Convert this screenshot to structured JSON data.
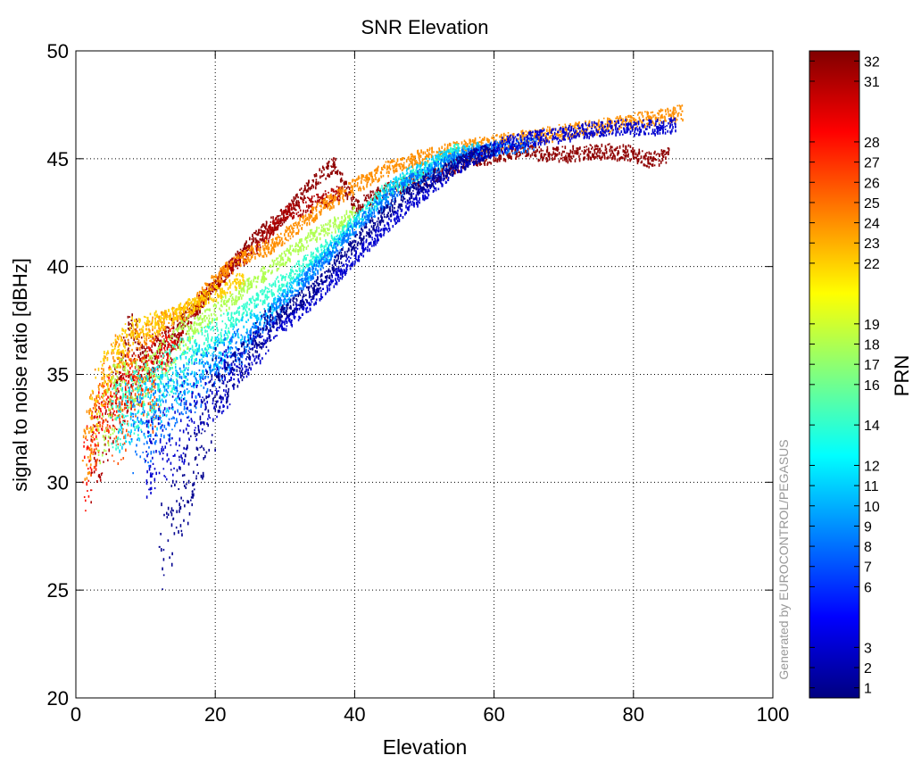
{
  "chart_data": {
    "type": "scatter",
    "title": "SNR Elevation",
    "xlabel": "Elevation",
    "ylabel": "signal to noise ratio  [dBHz]",
    "xlim": [
      0,
      100
    ],
    "ylim": [
      20,
      50
    ],
    "xticks": [
      0,
      20,
      40,
      60,
      80,
      100
    ],
    "yticks": [
      20,
      25,
      30,
      35,
      40,
      45,
      50
    ],
    "grid": true,
    "colorbar": {
      "label": "PRN",
      "range": [
        0.5,
        32.5
      ],
      "colormap": "jet",
      "ticks": [
        1,
        2,
        3,
        6,
        7,
        8,
        9,
        10,
        11,
        12,
        14,
        16,
        17,
        18,
        19,
        22,
        23,
        24,
        25,
        26,
        27,
        28,
        31,
        32
      ]
    },
    "watermark": "Generated by EUROCONTROL/PEGASUS",
    "series": [
      {
        "prn": 32,
        "x": [
          5,
          8,
          10,
          14,
          18,
          22,
          26,
          30,
          34,
          37,
          40,
          44,
          48,
          52,
          56,
          60,
          64,
          68,
          72,
          76,
          80,
          82,
          85
        ],
        "y": [
          34.0,
          37.5,
          35.5,
          37.0,
          38.5,
          40.0,
          41.5,
          42.5,
          44.0,
          44.8,
          42.8,
          43.5,
          44.0,
          44.3,
          45.0,
          45.2,
          45.5,
          45.2,
          45.3,
          45.4,
          45.3,
          45.0,
          45.2
        ]
      },
      {
        "prn": 31,
        "x": [
          2,
          5,
          8,
          11,
          14,
          18,
          22,
          26,
          30,
          34,
          38
        ],
        "y": [
          31.0,
          33.0,
          35.0,
          36.0,
          36.5,
          38.5,
          40.0,
          41.0,
          42.5,
          43.0,
          43.5
        ]
      },
      {
        "prn": 28,
        "x": [
          1,
          3,
          5,
          7,
          9,
          11,
          14
        ],
        "y": [
          30.0,
          33.0,
          34.0,
          35.0,
          34.5,
          35.5,
          36.5
        ]
      },
      {
        "prn": 26,
        "x": [
          2,
          4,
          6,
          9,
          12
        ],
        "y": [
          31.5,
          34.0,
          32.0,
          35.0,
          33.0
        ]
      },
      {
        "prn": 24,
        "x": [
          1,
          3,
          6,
          9,
          12,
          16,
          20,
          24,
          28,
          32,
          36,
          40,
          44,
          48,
          52,
          56,
          60,
          64,
          68,
          72,
          76,
          80,
          84,
          87
        ],
        "y": [
          31.0,
          34.0,
          36.0,
          36.5,
          37.5,
          38.0,
          39.5,
          40.5,
          41.0,
          42.0,
          43.0,
          43.8,
          44.5,
          45.0,
          45.3,
          45.6,
          45.8,
          46.0,
          46.2,
          46.4,
          46.6,
          46.8,
          47.0,
          47.2
        ]
      },
      {
        "prn": 22,
        "x": [
          2,
          4,
          8,
          12,
          18,
          24
        ],
        "y": [
          32.5,
          35.0,
          37.0,
          37.5,
          38.5,
          39.5
        ]
      },
      {
        "prn": 18,
        "x": [
          3,
          6,
          10,
          16,
          22,
          28,
          34,
          40
        ],
        "y": [
          32.0,
          34.5,
          35.0,
          37.0,
          38.5,
          40.0,
          41.5,
          42.5
        ]
      },
      {
        "prn": 14,
        "x": [
          5,
          10,
          16,
          22,
          30,
          38,
          44,
          50,
          55
        ],
        "y": [
          33.0,
          34.0,
          36.0,
          37.5,
          39.5,
          41.5,
          43.5,
          44.5,
          45.5
        ]
      },
      {
        "prn": 11,
        "x": [
          6,
          12,
          18,
          26,
          34,
          40,
          46,
          52,
          58
        ],
        "y": [
          33.0,
          34.0,
          35.5,
          37.5,
          40.0,
          42.0,
          44.0,
          45.0,
          45.5
        ]
      },
      {
        "prn": 8,
        "x": [
          8,
          12,
          18,
          24,
          30,
          36,
          42,
          48,
          54,
          60,
          66
        ],
        "y": [
          32.0,
          33.0,
          35.0,
          36.5,
          38.5,
          40.5,
          42.5,
          44.0,
          45.0,
          45.5,
          45.8
        ]
      },
      {
        "prn": 3,
        "x": [
          10,
          16,
          22,
          28,
          34,
          40,
          48,
          56,
          62,
          66,
          70,
          74,
          78,
          82,
          86
        ],
        "y": [
          31.0,
          33.0,
          35.0,
          37.0,
          38.5,
          40.5,
          43.0,
          45.0,
          45.8,
          46.0,
          46.2,
          46.4,
          46.5,
          46.5,
          46.6
        ]
      },
      {
        "prn": 1,
        "x": [
          12,
          20,
          28,
          34,
          38,
          44,
          50,
          56,
          60
        ],
        "y": [
          27.0,
          34.0,
          37.5,
          39.0,
          40.5,
          42.5,
          44.0,
          45.0,
          45.5
        ]
      }
    ]
  }
}
